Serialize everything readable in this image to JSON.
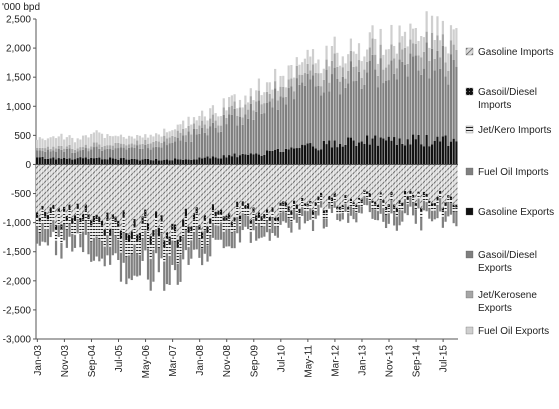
{
  "chart_data": {
    "type": "bar",
    "stacked": true,
    "unit_label": "'000 bpd",
    "title": "",
    "xlabel": "",
    "ylabel": "",
    "ylim": [
      -3000,
      2500
    ],
    "y_ticks": [
      2500,
      2000,
      1500,
      1000,
      500,
      0,
      -500,
      -1000,
      -1500,
      -2000,
      -2500,
      -3000
    ],
    "y_tick_labels": [
      "2,500",
      "2,000",
      "1,500",
      "1,000",
      "500",
      "0",
      "-500",
      "-1,000",
      "-1,500",
      "-2,000",
      "-2,500",
      "-3,000"
    ],
    "x_range": [
      "Jan-03",
      "Dec-15"
    ],
    "x_tick_labels": [
      "Jan-03",
      "Nov-03",
      "Sep-04",
      "Jul-05",
      "May-06",
      "Mar-07",
      "Jan-08",
      "Nov-08",
      "Sep-09",
      "Jul-10",
      "May-11",
      "Mar-12",
      "Jan-13",
      "Nov-13",
      "Sep-14",
      "Jul-15"
    ],
    "x_tick_month_index": [
      0,
      10,
      20,
      30,
      40,
      50,
      60,
      70,
      80,
      90,
      100,
      110,
      120,
      130,
      140,
      150
    ],
    "grid": false,
    "legend_position": "right",
    "legend": [
      {
        "name": "Gasoline Imports",
        "pattern": "hatch-diagonal"
      },
      {
        "name": "Gasoil/Diesel Imports",
        "pattern": "dark-dots"
      },
      {
        "name": "Jet/Kero Imports",
        "pattern": "horizontal-lines"
      },
      {
        "name": "Fuel Oil Imports",
        "pattern": "solid-grey"
      },
      {
        "name": "Gasoline Exports",
        "pattern": "solid-black"
      },
      {
        "name": "Gasoil/Diesel Exports",
        "pattern": "solid-dark-grey"
      },
      {
        "name": "Jet/Kerosene Exports",
        "pattern": "solid-mid-grey"
      },
      {
        "name": "Fuel Oil Exports",
        "pattern": "solid-light-grey"
      }
    ],
    "colors": {
      "gasoline_exports": "#111111",
      "gasoil_exports": "#7f7f7f",
      "jet_exports": "#a6a6a6",
      "fueloil_exports": "#cfcfcf",
      "gasoline_imports": "#8c8c8c",
      "gasoil_imports": "#2b2b2b",
      "jet_imports": "#ffffff",
      "fueloil_imports": "#808080"
    },
    "annual_approx": {
      "years": [
        2003,
        2004,
        2005,
        2006,
        2007,
        2008,
        2009,
        2010,
        2011,
        2012,
        2013,
        2014,
        2015
      ],
      "exports_positive": {
        "gasoline": [
          120,
          110,
          110,
          90,
          90,
          100,
          150,
          200,
          280,
          350,
          400,
          420,
          410
        ],
        "gasoil": [
          120,
          140,
          160,
          200,
          280,
          450,
          600,
          800,
          1000,
          1100,
          1200,
          1300,
          1350
        ],
        "jet": [
          50,
          60,
          70,
          80,
          100,
          120,
          140,
          160,
          170,
          200,
          220,
          240,
          250
        ],
        "fueloil": [
          160,
          170,
          180,
          120,
          120,
          150,
          160,
          170,
          200,
          230,
          250,
          280,
          300
        ]
      },
      "imports_negative": {
        "gasoline": [
          -850,
          -850,
          -900,
          -1000,
          -1100,
          -950,
          -800,
          -750,
          -720,
          -620,
          -570,
          -600,
          -600
        ],
        "gasoil": [
          -80,
          -80,
          -100,
          -120,
          -120,
          -100,
          -80,
          -70,
          -60,
          -50,
          -40,
          -50,
          -50
        ],
        "jet": [
          -200,
          -200,
          -250,
          -250,
          -250,
          -200,
          -150,
          -120,
          -100,
          -80,
          -80,
          -90,
          -90
        ],
        "fueloil": [
          -250,
          -250,
          -350,
          -450,
          -450,
          -350,
          -250,
          -220,
          -200,
          -130,
          -150,
          -220,
          -200
        ]
      }
    }
  }
}
